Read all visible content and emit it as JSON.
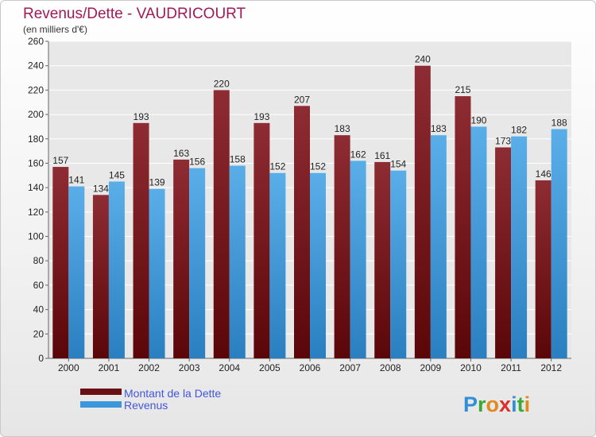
{
  "chart_data": {
    "type": "bar",
    "title": "Revenus/Dette - VAUDRICOURT",
    "subtitle": "(en milliers d'€)",
    "xlabel": "",
    "ylabel": "",
    "ylim": [
      0,
      260
    ],
    "ytick_step": 20,
    "grid": true,
    "legend_position": "bottom-left",
    "categories": [
      "2000",
      "2001",
      "2002",
      "2003",
      "2004",
      "2005",
      "2006",
      "2007",
      "2008",
      "2009",
      "2010",
      "2011",
      "2012"
    ],
    "series": [
      {
        "name": "Montant de la Dette",
        "color": "#7a1e22",
        "values": [
          157,
          134,
          193,
          163,
          220,
          193,
          207,
          183,
          161,
          240,
          215,
          173,
          146
        ]
      },
      {
        "name": "Revenus",
        "color": "#3c96dc",
        "values": [
          141,
          145,
          139,
          156,
          158,
          152,
          152,
          162,
          154,
          183,
          190,
          182,
          188
        ]
      }
    ]
  },
  "logo": {
    "text": "Proxiti"
  },
  "colors": {
    "title": "#a0195a",
    "legend_text": "#4455dd"
  }
}
